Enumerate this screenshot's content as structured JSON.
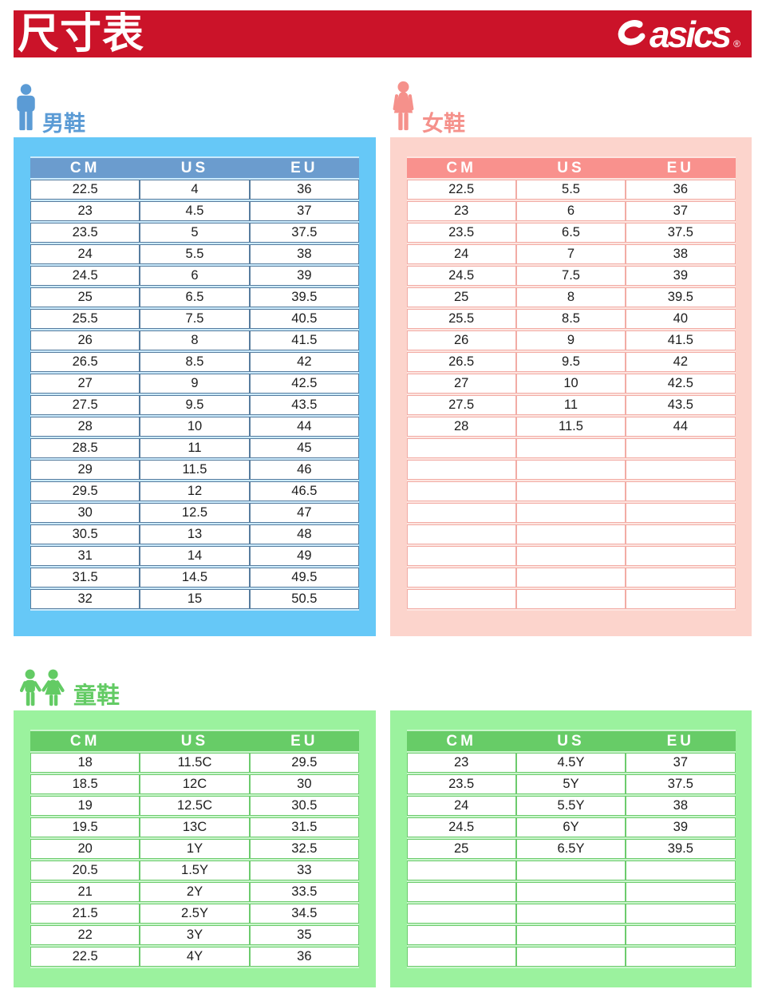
{
  "header": {
    "title": "尺寸表",
    "brand": "asics",
    "registered_mark": "®"
  },
  "columns": [
    "CM",
    "US",
    "EU"
  ],
  "sections": {
    "men": {
      "label": "男鞋",
      "rows": [
        [
          "22.5",
          "4",
          "36"
        ],
        [
          "23",
          "4.5",
          "37"
        ],
        [
          "23.5",
          "5",
          "37.5"
        ],
        [
          "24",
          "5.5",
          "38"
        ],
        [
          "24.5",
          "6",
          "39"
        ],
        [
          "25",
          "6.5",
          "39.5"
        ],
        [
          "25.5",
          "7.5",
          "40.5"
        ],
        [
          "26",
          "8",
          "41.5"
        ],
        [
          "26.5",
          "8.5",
          "42"
        ],
        [
          "27",
          "9",
          "42.5"
        ],
        [
          "27.5",
          "9.5",
          "43.5"
        ],
        [
          "28",
          "10",
          "44"
        ],
        [
          "28.5",
          "11",
          "45"
        ],
        [
          "29",
          "11.5",
          "46"
        ],
        [
          "29.5",
          "12",
          "46.5"
        ],
        [
          "30",
          "12.5",
          "47"
        ],
        [
          "30.5",
          "13",
          "48"
        ],
        [
          "31",
          "14",
          "49"
        ],
        [
          "31.5",
          "14.5",
          "49.5"
        ],
        [
          "32",
          "15",
          "50.5"
        ]
      ]
    },
    "women": {
      "label": "女鞋",
      "rows": [
        [
          "22.5",
          "5.5",
          "36"
        ],
        [
          "23",
          "6",
          "37"
        ],
        [
          "23.5",
          "6.5",
          "37.5"
        ],
        [
          "24",
          "7",
          "38"
        ],
        [
          "24.5",
          "7.5",
          "39"
        ],
        [
          "25",
          "8",
          "39.5"
        ],
        [
          "25.5",
          "8.5",
          "40"
        ],
        [
          "26",
          "9",
          "41.5"
        ],
        [
          "26.5",
          "9.5",
          "42"
        ],
        [
          "27",
          "10",
          "42.5"
        ],
        [
          "27.5",
          "11",
          "43.5"
        ],
        [
          "28",
          "11.5",
          "44"
        ],
        [
          "",
          "",
          ""
        ],
        [
          "",
          "",
          ""
        ],
        [
          "",
          "",
          ""
        ],
        [
          "",
          "",
          ""
        ],
        [
          "",
          "",
          ""
        ],
        [
          "",
          "",
          ""
        ],
        [
          "",
          "",
          ""
        ],
        [
          "",
          "",
          ""
        ]
      ]
    },
    "kids": {
      "label": "童鞋",
      "left_rows": [
        [
          "18",
          "11.5C",
          "29.5"
        ],
        [
          "18.5",
          "12C",
          "30"
        ],
        [
          "19",
          "12.5C",
          "30.5"
        ],
        [
          "19.5",
          "13C",
          "31.5"
        ],
        [
          "20",
          "1Y",
          "32.5"
        ],
        [
          "20.5",
          "1.5Y",
          "33"
        ],
        [
          "21",
          "2Y",
          "33.5"
        ],
        [
          "21.5",
          "2.5Y",
          "34.5"
        ],
        [
          "22",
          "3Y",
          "35"
        ],
        [
          "22.5",
          "4Y",
          "36"
        ]
      ],
      "right_rows": [
        [
          "23",
          "4.5Y",
          "37"
        ],
        [
          "23.5",
          "5Y",
          "37.5"
        ],
        [
          "24",
          "5.5Y",
          "38"
        ],
        [
          "24.5",
          "6Y",
          "39"
        ],
        [
          "25",
          "6.5Y",
          "39.5"
        ],
        [
          "",
          "",
          ""
        ],
        [
          "",
          "",
          ""
        ],
        [
          "",
          "",
          ""
        ],
        [
          "",
          "",
          ""
        ],
        [
          "",
          "",
          ""
        ]
      ]
    }
  },
  "colors": {
    "brand_red": "#CB1329",
    "men_accent": "#5B9BD5",
    "men_panel": "#66C8F7",
    "men_header": "#6B9CCE",
    "men_border": "#567C9E",
    "men_tint": "#CBEAFC",
    "women_accent": "#F5918B",
    "women_panel": "#FCD4CC",
    "women_header": "#F9918D",
    "women_border": "#F2ACA5",
    "women_tint": "#FDE5E0",
    "kids_accent": "#63CB64",
    "kids_panel": "#9BF29E",
    "kids_header": "#67CC67",
    "kids_border": "#6CCB6D",
    "kids_tint": "#CAF6CC"
  }
}
